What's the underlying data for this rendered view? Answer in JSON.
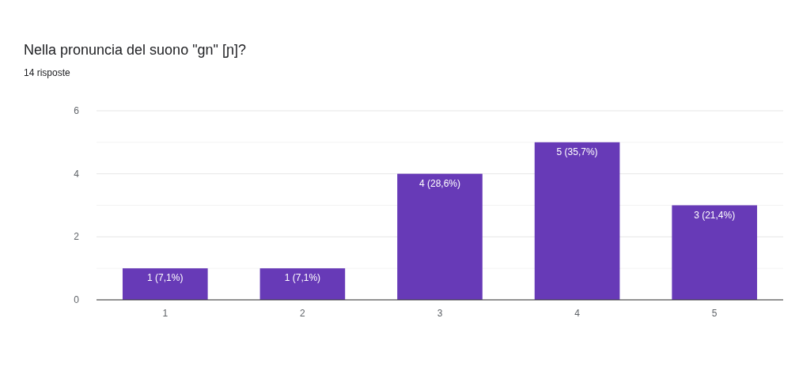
{
  "chart_data": {
    "type": "bar",
    "title": "Nella pronuncia del suono \"gn\" [ɲ]?",
    "subtitle": "14 risposte",
    "categories": [
      "1",
      "2",
      "3",
      "4",
      "5"
    ],
    "values": [
      1,
      1,
      4,
      5,
      3
    ],
    "value_labels": [
      "1 (7,1%)",
      "1 (7,1%)",
      "4 (28,6%)",
      "5 (35,7%)",
      "3 (21,4%)"
    ],
    "color": "#673ab7",
    "ylim": [
      0,
      6
    ],
    "yticks": [
      0,
      {
        "value": 1,
        "label": null
      },
      2,
      {
        "value": 3,
        "label": null
      },
      4,
      {
        "value": 5,
        "label": null
      },
      6
    ],
    "grid": "y"
  }
}
